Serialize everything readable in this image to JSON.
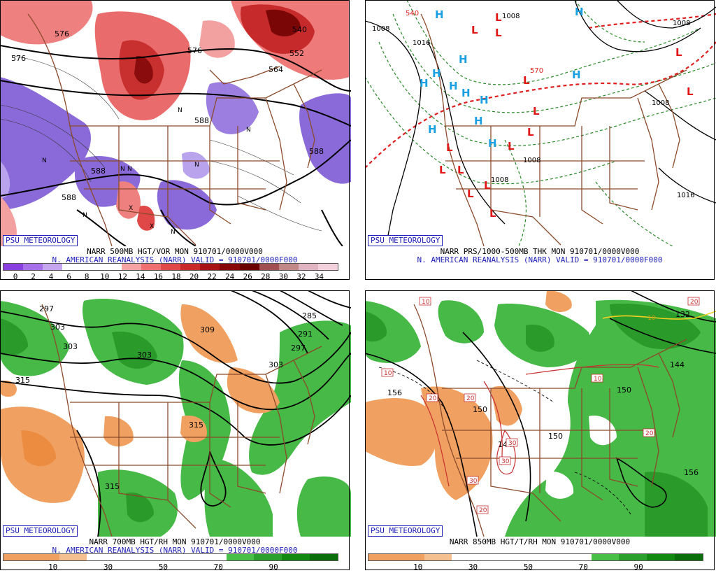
{
  "panels": [
    {
      "id": "tl",
      "logo": "PSU METEOROLOGY",
      "caption1": "NARR 500MB HGT/VOR MON 910701/0000V000",
      "caption2": "N. AMERICAN REANALYSIS (NARR) VALID = 910701/0000F000",
      "colorbar": {
        "colors": [
          "#8a3fe0",
          "#a76fe8",
          "#c5a5f0",
          "#ffffff",
          "#ffffff",
          "#ffffff",
          "#f5a3a3",
          "#ee7070",
          "#e04848",
          "#c82a2a",
          "#a81414",
          "#870808",
          "#6a0000",
          "#a05050",
          "#c28888",
          "#e0b4c0",
          "#f2d0dc"
        ],
        "labels": [
          "0",
          "2",
          "4",
          "6",
          "8",
          "10",
          "12",
          "14",
          "16",
          "18",
          "20",
          "22",
          "24",
          "26",
          "28",
          "30",
          "32",
          "34"
        ]
      },
      "contour_labels": [
        "576",
        "576",
        "588",
        "588",
        "588",
        "552",
        "564",
        "540",
        "576",
        "588"
      ],
      "markers": [
        "N",
        "N",
        "N",
        "N",
        "N",
        "N",
        "N",
        "X",
        "X",
        "N"
      ]
    },
    {
      "id": "tr",
      "logo": "PSU METEOROLOGY",
      "caption1": "NARR PRS/1000-500MB THK MON 910701/0000V000",
      "caption2": "N. AMERICAN REANALYSIS (NARR) VALID = 910701/0000F000",
      "contour_labels": [
        "1008",
        "1016",
        "1008",
        "1008",
        "1008",
        "1016",
        "1008",
        "1008",
        "570",
        "540"
      ],
      "high_markers": [
        "H",
        "H",
        "H",
        "H",
        "H",
        "H",
        "H",
        "H",
        "H",
        "H",
        "H",
        "H"
      ],
      "low_markers": [
        "L",
        "L",
        "L",
        "L",
        "L",
        "L",
        "L",
        "L",
        "L",
        "L",
        "L",
        "L",
        "L",
        "L",
        "L"
      ]
    },
    {
      "id": "bl",
      "logo": "PSU METEOROLOGY",
      "caption1": "NARR 700MB HGT/RH MON 910701/0000V000",
      "caption2": "N. AMERICAN REANALYSIS (NARR) VALID = 910701/0000F000",
      "colorbar": {
        "colors": [
          "#f0a060",
          "#f0a060",
          "#f5c090",
          "#ffffff",
          "#ffffff",
          "#ffffff",
          "#ffffff",
          "#ffffff",
          "#48c048",
          "#2ca02c",
          "#128a12",
          "#0a6e0a"
        ],
        "labels": [
          "10",
          "30",
          "50",
          "70",
          "90"
        ]
      },
      "contour_labels": [
        "297",
        "303",
        "303",
        "303",
        "309",
        "315",
        "315",
        "315",
        "285",
        "291",
        "297",
        "303"
      ]
    },
    {
      "id": "br",
      "logo": "PSU METEOROLOGY",
      "caption1": "NARR 850MB HGT/T/RH MON 910701/0000V000",
      "caption2": "",
      "colorbar": {
        "colors": [
          "#f0a060",
          "#f0a060",
          "#f5c090",
          "#ffffff",
          "#ffffff",
          "#ffffff",
          "#ffffff",
          "#ffffff",
          "#48c048",
          "#2ca02c",
          "#128a12",
          "#0a6e0a"
        ],
        "labels": [
          "10",
          "30",
          "50",
          "70",
          "90"
        ]
      },
      "contour_labels": [
        "156",
        "150",
        "150",
        "144",
        "150",
        "156",
        "144",
        "132"
      ],
      "temp_labels": [
        "10",
        "10",
        "20",
        "20",
        "20",
        "20",
        "30",
        "30",
        "30",
        "20",
        "10",
        "10"
      ]
    }
  ]
}
